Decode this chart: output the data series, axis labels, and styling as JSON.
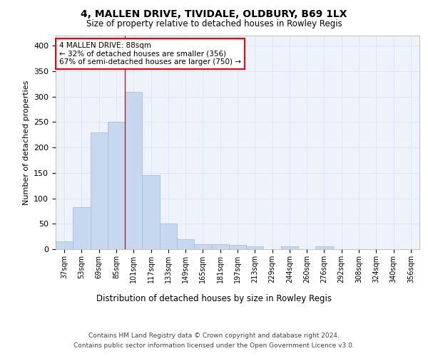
{
  "title1": "4, MALLEN DRIVE, TIVIDALE, OLDBURY, B69 1LX",
  "title2": "Size of property relative to detached houses in Rowley Regis",
  "xlabel": "Distribution of detached houses by size in Rowley Regis",
  "ylabel": "Number of detached properties",
  "categories": [
    "37sqm",
    "53sqm",
    "69sqm",
    "85sqm",
    "101sqm",
    "117sqm",
    "133sqm",
    "149sqm",
    "165sqm",
    "181sqm",
    "197sqm",
    "213sqm",
    "229sqm",
    "244sqm",
    "260sqm",
    "276sqm",
    "292sqm",
    "308sqm",
    "324sqm",
    "340sqm",
    "356sqm"
  ],
  "values": [
    15,
    82,
    230,
    250,
    310,
    145,
    50,
    20,
    10,
    10,
    8,
    5,
    0,
    5,
    0,
    5,
    0,
    0,
    0,
    0,
    0
  ],
  "bar_color": "#c5d8f0",
  "bar_edge_color": "#a0b8d8",
  "bar_linewidth": 0.5,
  "annotation_text": "4 MALLEN DRIVE: 88sqm\n← 32% of detached houses are smaller (356)\n67% of semi-detached houses are larger (750) →",
  "annotation_box_color": "white",
  "annotation_box_edge": "red",
  "redline_x": 3.5,
  "ylim": [
    0,
    420
  ],
  "yticks": [
    0,
    50,
    100,
    150,
    200,
    250,
    300,
    350,
    400
  ],
  "grid_color": "#dce6f5",
  "background_color": "#eef3fb",
  "footer1": "Contains HM Land Registry data © Crown copyright and database right 2024.",
  "footer2": "Contains public sector information licensed under the Open Government Licence v3.0."
}
